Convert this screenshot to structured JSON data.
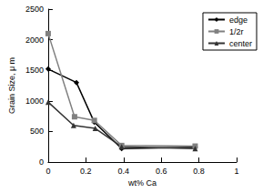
{
  "chart_data": {
    "type": "line",
    "x_label": "wt% Ca",
    "y_label": "Grain Size, μ m",
    "xlim": [
      0,
      1
    ],
    "xticks": [
      0,
      0.2,
      0.4,
      0.6,
      0.8,
      1
    ],
    "ylim": [
      0,
      2500
    ],
    "yticks": [
      0,
      500,
      1000,
      1500,
      2000,
      2500
    ],
    "grid": false,
    "legend": "upper right",
    "series": [
      {
        "name": "edge",
        "color": "#000000",
        "marker": "diamond",
        "x": [
          0,
          0.15,
          0.245,
          0.39,
          0.78
        ],
        "values": [
          1520,
          1300,
          650,
          220,
          240
        ]
      },
      {
        "name": "1/2r",
        "color": "#808080",
        "marker": "square",
        "x": [
          0,
          0.14,
          0.245,
          0.39,
          0.78
        ],
        "values": [
          2100,
          740,
          680,
          270,
          260
        ]
      },
      {
        "name": "center",
        "color": "#333333",
        "marker": "triangle",
        "x": [
          0,
          0.135,
          0.25,
          0.39,
          0.78
        ],
        "values": [
          980,
          600,
          550,
          250,
          220
        ]
      }
    ]
  }
}
